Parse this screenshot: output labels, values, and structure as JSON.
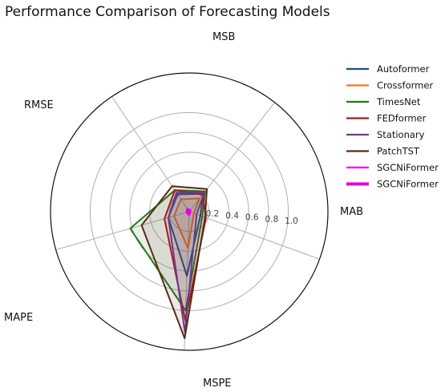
{
  "chart_data": {
    "type": "radar",
    "title": "Performance Comparison of Forecasting Models",
    "axes": [
      "MAB",
      "MSB",
      "RMSE",
      "MAPE",
      "MSPE"
    ],
    "radial_ticks": [
      "0.2",
      "0.4",
      "0.6",
      "0.8",
      "1.0"
    ],
    "radial_tick_values": [
      0.2,
      0.4,
      0.6,
      0.8,
      1.0
    ],
    "rmax": 1.4,
    "grid": true,
    "legend_position": "right",
    "series": [
      {
        "name": "Autoformer",
        "color": "#1f4e8c",
        "values": [
          0.12,
          0.23,
          0.21,
          0.22,
          0.65
        ]
      },
      {
        "name": "Crossformer",
        "color": "#f07820",
        "values": [
          0.05,
          0.17,
          0.15,
          0.16,
          0.37
        ]
      },
      {
        "name": "TimesNet",
        "color": "#1e7a1e",
        "values": [
          0.14,
          0.26,
          0.26,
          0.62,
          1.0
        ]
      },
      {
        "name": "FEDformer",
        "color": "#b01818",
        "values": [
          0.18,
          0.22,
          0.26,
          0.26,
          1.1
        ]
      },
      {
        "name": "Stationary",
        "color": "#6a3d9a",
        "values": [
          0.08,
          0.25,
          0.23,
          0.22,
          1.22
        ]
      },
      {
        "name": "PatchTST",
        "color": "#5a2a17",
        "values": [
          0.17,
          0.29,
          0.31,
          0.5,
          1.28
        ]
      },
      {
        "name": "SGCNiFormer",
        "color": "#ff00ff",
        "values": [
          0.01,
          0.02,
          0.04,
          0.03,
          0.04
        ]
      },
      {
        "name": "SGCNiFormer",
        "color": "#e000e0",
        "values": [
          0.005,
          0.01,
          0.02,
          0.02,
          0.02
        ]
      }
    ]
  }
}
